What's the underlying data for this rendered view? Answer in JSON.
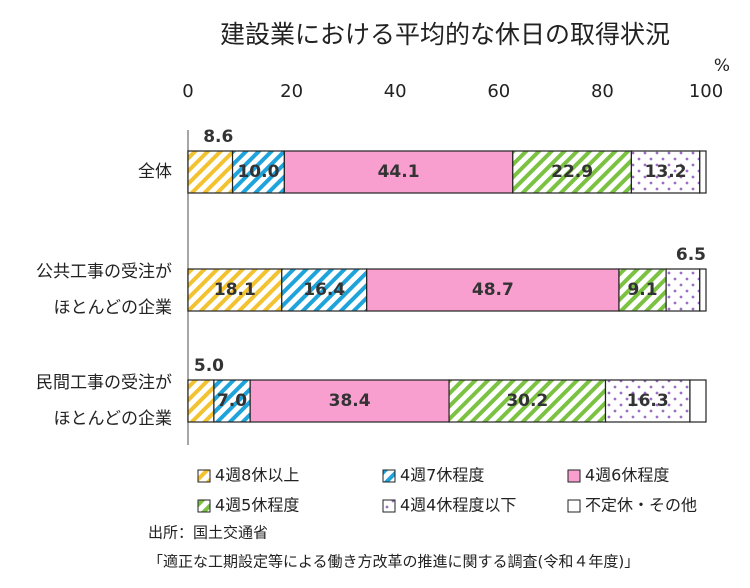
{
  "chart_data": {
    "type": "stacked-bar-horizontal",
    "title": "建設業における平均的な休日の取得状況",
    "xlabel": "%",
    "xlim": [
      0,
      100
    ],
    "xticks": [
      0,
      20,
      40,
      60,
      80,
      100
    ],
    "categories": [
      [
        "全体"
      ],
      [
        "公共工事の受注が",
        "ほとんどの企業"
      ],
      [
        "民間工事の受注が",
        "ほとんどの企業"
      ]
    ],
    "series": [
      {
        "name": "4週8休以上",
        "color": "#f2c230",
        "pattern": "stripes",
        "values": [
          8.6,
          18.1,
          5.0
        ],
        "value_labels": [
          "8.6",
          "18.1",
          "5.0"
        ]
      },
      {
        "name": "4週7休程度",
        "color": "#1fa3db",
        "pattern": "stripes",
        "values": [
          10.0,
          16.4,
          7.0
        ],
        "value_labels": [
          "10.0",
          "16.4",
          "7.0"
        ]
      },
      {
        "name": "4週6休程度",
        "color": "#f99fd0",
        "pattern": "solid",
        "values": [
          44.1,
          48.7,
          38.4
        ],
        "value_labels": [
          "44.1",
          "48.7",
          "38.4"
        ]
      },
      {
        "name": "4週5休程度",
        "color": "#7cc242",
        "pattern": "stripes",
        "values": [
          22.9,
          9.1,
          30.2
        ],
        "value_labels": [
          "22.9",
          "9.1",
          "30.2"
        ]
      },
      {
        "name": "4週4休程度以下",
        "color": "#9d6fc4",
        "pattern": "dots",
        "values": [
          13.2,
          6.5,
          16.3
        ],
        "value_labels": [
          "13.2",
          "6.5",
          "16.3"
        ]
      },
      {
        "name": "不定休・その他",
        "color": "#ffffff",
        "pattern": "solid",
        "values": [
          1.2,
          1.2,
          3.1
        ]
      }
    ],
    "source": [
      "出所：国土交通省",
      "「適正な工期設定等による働き方改革の推進に関する調査(令和４年度)」"
    ]
  }
}
